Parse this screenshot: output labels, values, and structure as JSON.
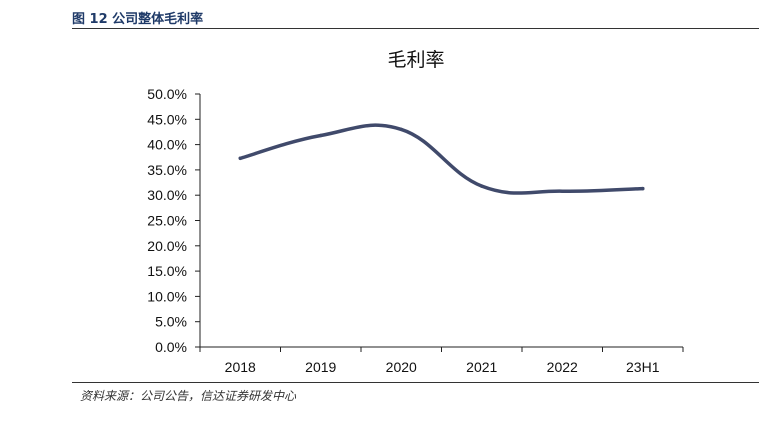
{
  "figure": {
    "caption": "图 12  公司整体毛利率",
    "source": "资料来源：公司公告，信达证券研发中心"
  },
  "chart_data": {
    "type": "line",
    "title": "毛利率",
    "xlabel": "",
    "ylabel": "",
    "categories": [
      "2018",
      "2019",
      "2020",
      "2021",
      "2022",
      "23H1"
    ],
    "series": [
      {
        "values": [
          37.3,
          41.8,
          43.0,
          31.8,
          30.8,
          31.3
        ],
        "color": "#404a6b"
      }
    ],
    "ylim": [
      0,
      50
    ],
    "y_ticks": [
      "0.0%",
      "5.0%",
      "10.0%",
      "15.0%",
      "20.0%",
      "25.0%",
      "30.0%",
      "35.0%",
      "40.0%",
      "45.0%",
      "50.0%"
    ],
    "grid": false,
    "legend": "none"
  }
}
